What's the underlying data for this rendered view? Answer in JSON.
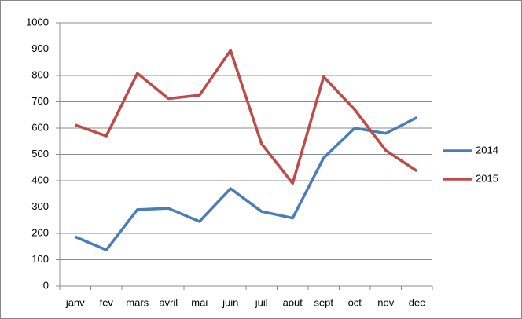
{
  "chart_data": {
    "type": "line",
    "categories": [
      "janv",
      "fev",
      "mars",
      "avril",
      "mai",
      "juin",
      "juil",
      "aout",
      "sept",
      "oct",
      "nov",
      "dec"
    ],
    "series": [
      {
        "name": "2014",
        "color": "#4a7ebb",
        "values": [
          187,
          137,
          290,
          295,
          245,
          370,
          283,
          258,
          487,
          600,
          580,
          640
        ]
      },
      {
        "name": "2015",
        "color": "#be4b48",
        "values": [
          612,
          570,
          808,
          712,
          725,
          895,
          540,
          390,
          795,
          670,
          515,
          437
        ]
      }
    ],
    "ylim": [
      0,
      1000
    ],
    "yticks": [
      0,
      100,
      200,
      300,
      400,
      500,
      600,
      700,
      800,
      900,
      1000
    ],
    "grid": true,
    "legend": "right"
  }
}
